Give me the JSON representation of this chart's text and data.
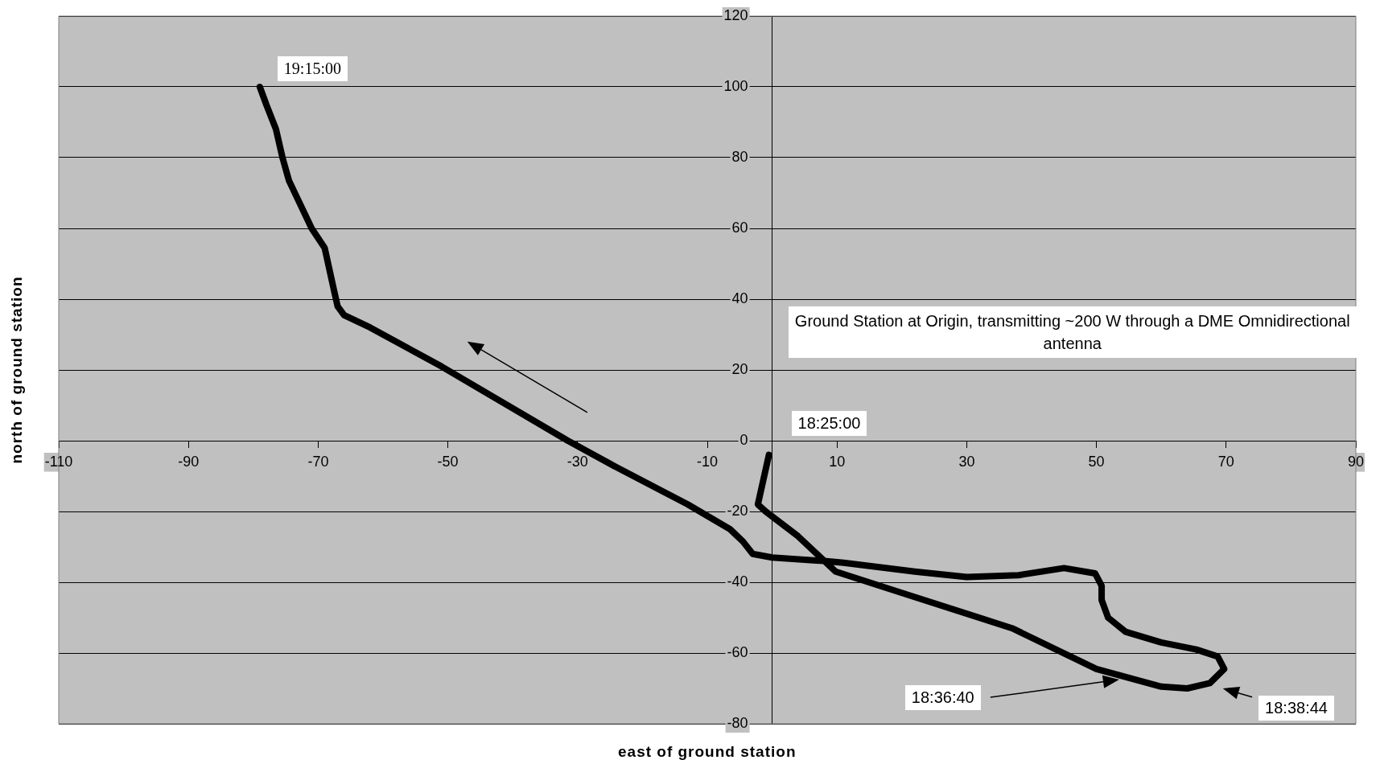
{
  "chart_data": {
    "type": "line",
    "xlabel": "east of ground station",
    "ylabel": "north of ground station",
    "color": "#000000",
    "x": [
      -0.5,
      -2.2,
      -1,
      4,
      9.8,
      20,
      37,
      50,
      60,
      64,
      67.5,
      69.7,
      68.7,
      65.4,
      60,
      54.5,
      51.8,
      50.8,
      50.8,
      49.8,
      45,
      38,
      30,
      22,
      11,
      8,
      0,
      -3,
      -4.5,
      -6.5,
      -13,
      -24,
      -31.5,
      -51,
      -62,
      -66,
      -67,
      -67.5,
      -69,
      -71,
      -74.5,
      -75.5,
      -76.5,
      -78,
      -79
    ],
    "values": [
      -4,
      -18,
      -20,
      -27,
      -37,
      -43,
      -53,
      -64.5,
      -69.5,
      -70,
      -68.5,
      -64.5,
      -61,
      -59,
      -57,
      -54,
      -50,
      -45,
      -41,
      -37.5,
      -36,
      -38,
      -38.5,
      -37,
      -34.5,
      -34,
      -33,
      -32,
      -28.5,
      -25,
      -18,
      -7.5,
      0,
      21,
      32,
      35.5,
      38,
      42,
      54.5,
      60,
      73.5,
      80,
      88,
      95,
      100
    ],
    "xlim": [
      -110,
      90
    ],
    "xticks": [
      -110,
      -90,
      -70,
      -50,
      -30,
      -10,
      10,
      30,
      50,
      70,
      90
    ],
    "ylim": [
      -80,
      120
    ],
    "yticks": [
      -80,
      -60,
      -40,
      -20,
      0,
      20,
      40,
      60,
      80,
      100,
      120
    ],
    "grid": "y",
    "annotations": [
      {
        "text": "18:25:00",
        "x": -0.5,
        "y": -4
      },
      {
        "text": "19:15:00",
        "x": -79,
        "y": 100
      },
      "18:36:40",
      "18:38:44",
      "Ground Station at Origin, transmitting ~200 W through a DME Omnidirectional antenna"
    ]
  }
}
